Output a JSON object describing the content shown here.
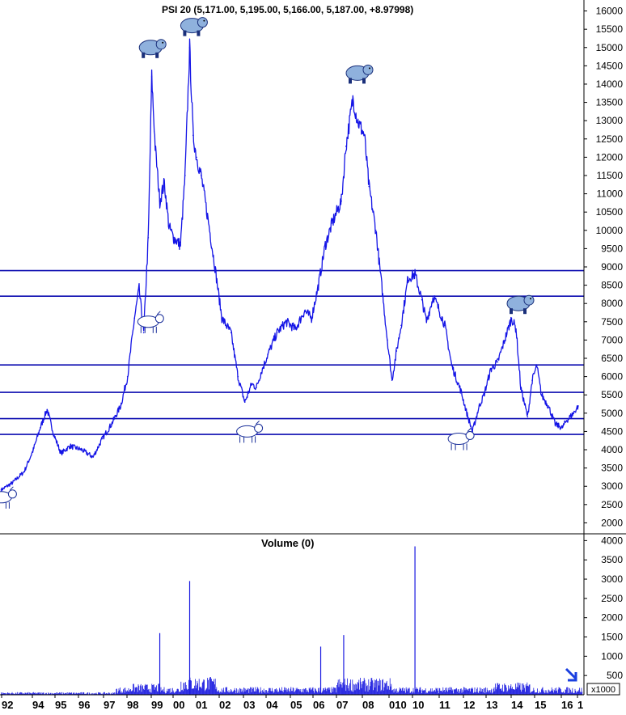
{
  "chart_data": {
    "type": "line",
    "title": "PSI 20 (5,171.00, 5,195.00, 5,166.00, 5,187.00, +8.97998)",
    "price_axis": {
      "ylim": [
        1700,
        16300
      ],
      "ticks": [
        "2000",
        "2500",
        "3000",
        "3500",
        "4000",
        "4500",
        "5000",
        "5500",
        "6000",
        "6500",
        "7000",
        "7500",
        "8000",
        "8500",
        "9000",
        "9500",
        "10000",
        "10500",
        "11000",
        "11500",
        "12000",
        "12500",
        "13000",
        "13500",
        "14000",
        "14500",
        "15000",
        "15500",
        "16000"
      ]
    },
    "x_tick_labels": [
      "92",
      "94",
      "95",
      "96",
      "97",
      "98",
      "99",
      "00",
      "01",
      "02",
      "03",
      "04",
      "05",
      "06",
      "07",
      "08",
      "010",
      "10",
      "11",
      "12",
      "13",
      "14",
      "15",
      "16",
      "1"
    ],
    "series": [
      {
        "values_x": [
          1992.0,
          1992.5,
          1993.0,
          1993.4,
          1993.7,
          1994.0,
          1994.3,
          1994.6,
          1995.0,
          1995.5,
          1996.0,
          1996.4,
          1996.8,
          1997.2,
          1997.5,
          1997.8,
          1998.0,
          1998.2,
          1998.4,
          1998.55,
          1998.7,
          1998.9,
          1999.1,
          1999.3,
          1999.5,
          1999.8,
          2000.0,
          2000.2,
          2000.35,
          2000.5,
          2000.7,
          2001.0,
          2001.3,
          2001.6,
          2002.0,
          2002.3,
          2002.6,
          2002.9,
          2003.1,
          2003.3,
          2003.6,
          2004.0,
          2004.4,
          2004.8,
          2005.2,
          2005.5,
          2005.8,
          2006.1,
          2006.4,
          2006.8,
          2007.0,
          2007.3,
          2007.5,
          2007.8,
          2008.0,
          2008.3,
          2008.6,
          2008.8,
          2009.0,
          2009.2,
          2009.4,
          2009.7,
          2010.0,
          2010.3,
          2010.5,
          2010.8,
          2011.0,
          2011.3,
          2011.6,
          2012.0,
          2012.3,
          2012.5,
          2012.8,
          2013.0,
          2013.3,
          2013.6,
          2014.0,
          2014.2,
          2014.4,
          2014.6,
          2014.9,
          2015.1,
          2015.3,
          2015.5,
          2015.8,
          2016.1,
          2016.4,
          2016.6,
          2016.9,
          2017.1
        ],
        "values_y": [
          2900,
          3100,
          3400,
          4000,
          4600,
          5100,
          4400,
          3900,
          4100,
          4000,
          3800,
          4300,
          4700,
          5200,
          6000,
          7600,
          8400,
          7200,
          9800,
          14200,
          12300,
          10800,
          11300,
          10100,
          9800,
          9600,
          11500,
          15000,
          12600,
          12000,
          11500,
          10300,
          9000,
          7600,
          7200,
          6000,
          5300,
          5800,
          5700,
          6100,
          6600,
          7200,
          7500,
          7300,
          7800,
          7600,
          8500,
          9600,
          10200,
          10800,
          12300,
          13600,
          13000,
          12600,
          11200,
          10000,
          8200,
          7000,
          5900,
          6700,
          7400,
          8700,
          8800,
          8100,
          7500,
          8200,
          7900,
          7400,
          6300,
          5600,
          4900,
          4500,
          5200,
          5500,
          6200,
          6400,
          7200,
          7600,
          7300,
          5700,
          4900,
          5900,
          6300,
          5500,
          5200,
          4700,
          4600,
          4800,
          5000,
          5200
        ]
      }
    ],
    "horizontal_lines": [
      8900,
      8200,
      6320,
      5570,
      4850,
      4420
    ],
    "volume_panel": {
      "title": "Volume (0)",
      "ylim": [
        0,
        4050
      ],
      "ticks": [
        "500",
        "1000",
        "1500",
        "2000",
        "2500",
        "3000",
        "3500",
        "4000"
      ],
      "unit": "x1000",
      "spikes_x": [
        1998.9,
        2000.2,
        2005.9,
        2006.9,
        2010.0
      ],
      "spikes_y": [
        1600,
        2950,
        1250,
        1550,
        3850
      ]
    },
    "annotation_icons": [
      {
        "kind": "bear-icon",
        "x": 1998.5,
        "y": 15000
      },
      {
        "kind": "bear-icon",
        "x": 2000.3,
        "y": 15600
      },
      {
        "kind": "bear-icon",
        "x": 2007.5,
        "y": 14300
      },
      {
        "kind": "bear-icon",
        "x": 2014.5,
        "y": 8000
      },
      {
        "kind": "bull-icon",
        "x": 1992.0,
        "y": 2700
      },
      {
        "kind": "bull-icon",
        "x": 1998.4,
        "y": 7500
      },
      {
        "kind": "bull-icon",
        "x": 2002.7,
        "y": 4500
      },
      {
        "kind": "bull-icon",
        "x": 2011.9,
        "y": 4300
      }
    ],
    "colors": {
      "price": "#1414e6",
      "lines": "#0b0bb0",
      "volume": "#1a1ae0",
      "arrow": "#1a3fe0"
    }
  }
}
